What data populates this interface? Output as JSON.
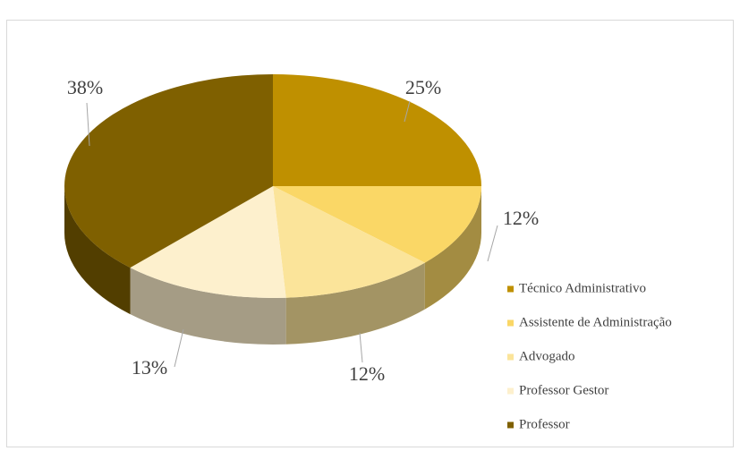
{
  "chart_data": {
    "type": "pie",
    "categories": [
      "Técnico Administrativo",
      "Assistente de Administração",
      "Advogado",
      "Professor Gestor",
      "Professor"
    ],
    "values": [
      25,
      12,
      12,
      13,
      38
    ],
    "value_labels": [
      "25%",
      "12%",
      "12%",
      "13%",
      "38%"
    ],
    "colors": [
      "#bf9000",
      "#fad766",
      "#fbe49a",
      "#fdf0cd",
      "#7f6000"
    ],
    "legend": "right"
  }
}
